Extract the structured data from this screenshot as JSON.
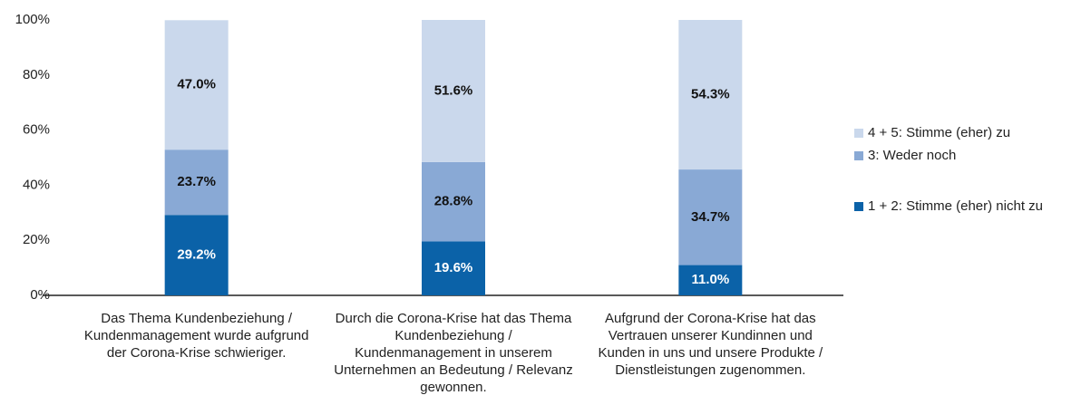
{
  "chart_data": {
    "type": "bar",
    "stacked": true,
    "categories": [
      "Das Thema Kundenbeziehung / Kundenmanagement wurde aufgrund der Corona-Krise schwieriger.",
      "Durch die Corona-Krise hat das Thema Kundenbeziehung / Kundenmanagement in unserem Unternehmen an Bedeutung / Relevanz gewonnen.",
      "Aufgrund der Corona-Krise hat das Vertrauen unserer Kundinnen und Kunden in uns und unsere Produkte / Dienstleistungen zugenommen."
    ],
    "series": [
      {
        "name": "1 + 2: Stimme (eher) nicht zu",
        "color": "#0b62a8",
        "values": [
          29.2,
          19.6,
          11.0
        ],
        "value_labels": [
          "29.2%",
          "19.6%",
          "11.0%"
        ]
      },
      {
        "name": "3: Weder noch",
        "color": "#89a9d5",
        "values": [
          23.7,
          28.8,
          34.7
        ],
        "value_labels": [
          "23.7%",
          "28.8%",
          "34.7%"
        ]
      },
      {
        "name": "4 + 5: Stimme (eher) zu",
        "color": "#cad8ec",
        "values": [
          47.0,
          51.6,
          54.3
        ],
        "value_labels": [
          "47.0%",
          "51.6%",
          "54.3%"
        ]
      }
    ],
    "ylim": [
      0,
      100
    ],
    "yticks": [
      {
        "value": 0,
        "label": "0%"
      },
      {
        "value": 20,
        "label": "20%"
      },
      {
        "value": 40,
        "label": "40%"
      },
      {
        "value": 60,
        "label": "60%"
      },
      {
        "value": 80,
        "label": "80%"
      },
      {
        "value": 100,
        "label": "100%"
      }
    ],
    "legend": "right"
  }
}
